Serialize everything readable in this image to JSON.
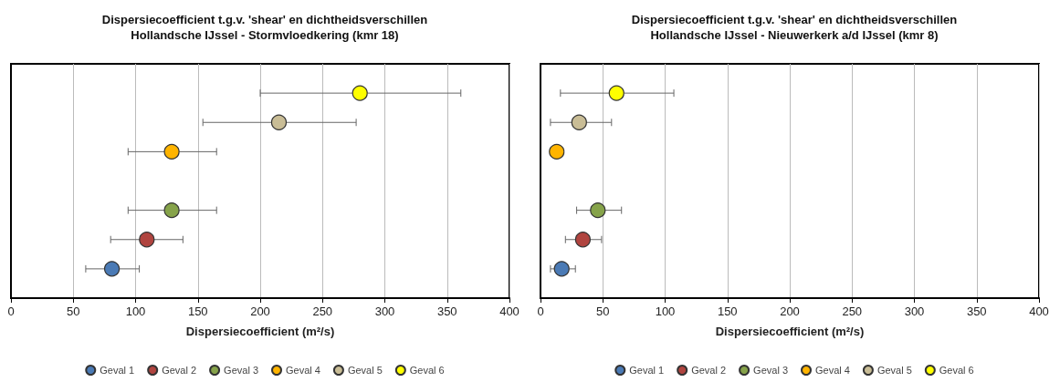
{
  "chart_data": [
    {
      "type": "scatter",
      "orientation": "horizontal",
      "title": "Dispersiecoefficient t.g.v. 'shear' en dichtheidsverschillen",
      "subtitle": "Hollandsche IJssel - Stormvloedkering (kmr 18)",
      "xlabel": "Dispersiecoefficient (m²/s)",
      "categories": [
        null,
        null,
        null,
        null,
        null,
        null,
        null
      ],
      "xlim": [
        0,
        400
      ],
      "xticks": [
        0,
        50,
        100,
        150,
        200,
        250,
        300,
        350,
        400
      ],
      "grid": "x",
      "legend": "bottom",
      "marker": "circle",
      "series": [
        {
          "name": "Geval 1",
          "color": "#4a7ab5",
          "values": [
            null,
            null,
            null,
            null,
            null,
            null,
            81
          ],
          "errors": [
            null,
            null,
            null,
            null,
            null,
            null,
            [
              60,
              103
            ]
          ]
        },
        {
          "name": "Geval 2",
          "color": "#b0443f",
          "values": [
            null,
            null,
            null,
            null,
            null,
            109,
            null
          ],
          "errors": [
            null,
            null,
            null,
            null,
            null,
            [
              80,
              138
            ],
            null
          ]
        },
        {
          "name": "Geval 3",
          "color": "#86a34a",
          "values": [
            null,
            null,
            null,
            null,
            129,
            null,
            null
          ],
          "errors": [
            null,
            null,
            null,
            null,
            [
              94,
              165
            ],
            null,
            null
          ]
        },
        {
          "name": "Geval 4",
          "color": "#ffb400",
          "values": [
            null,
            null,
            129,
            null,
            null,
            null,
            null
          ],
          "errors": [
            null,
            null,
            [
              94,
              165
            ],
            null,
            null,
            null,
            null
          ]
        },
        {
          "name": "Geval 5",
          "color": "#c9bd96",
          "values": [
            null,
            215,
            null,
            null,
            null,
            null,
            null
          ],
          "errors": [
            null,
            [
              154,
              277
            ],
            null,
            null,
            null,
            null,
            null
          ]
        },
        {
          "name": "Geval 6",
          "color": "#ffff00",
          "values": [
            280,
            null,
            null,
            null,
            null,
            null,
            null
          ],
          "errors": [
            [
              200,
              361
            ],
            null,
            null,
            null,
            null,
            null,
            null
          ]
        }
      ]
    },
    {
      "type": "scatter",
      "orientation": "horizontal",
      "title": "Dispersiecoefficient t.g.v. 'shear' en dichtheidsverschillen",
      "subtitle": "Hollandsche IJssel - Nieuwerkerk a/d IJssel (kmr 8)",
      "xlabel": "Dispersiecoefficient (m²/s)",
      "categories": [
        null,
        null,
        null,
        null,
        null,
        null,
        null
      ],
      "xlim": [
        0,
        400
      ],
      "xticks": [
        0,
        50,
        100,
        150,
        200,
        250,
        300,
        350,
        400
      ],
      "grid": "x",
      "legend": "bottom",
      "marker": "circle",
      "series": [
        {
          "name": "Geval 1",
          "color": "#4a7ab5",
          "values": [
            null,
            null,
            null,
            null,
            null,
            null,
            17
          ],
          "errors": [
            null,
            null,
            null,
            null,
            null,
            null,
            [
              8,
              28
            ]
          ]
        },
        {
          "name": "Geval 2",
          "color": "#b0443f",
          "values": [
            null,
            null,
            null,
            null,
            null,
            34,
            null
          ],
          "errors": [
            null,
            null,
            null,
            null,
            null,
            [
              20,
              49
            ],
            null
          ]
        },
        {
          "name": "Geval 3",
          "color": "#86a34a",
          "values": [
            null,
            null,
            null,
            null,
            46,
            null,
            null
          ],
          "errors": [
            null,
            null,
            null,
            null,
            [
              29,
              65
            ],
            null,
            null
          ]
        },
        {
          "name": "Geval 4",
          "color": "#ffb400",
          "values": [
            null,
            null,
            13,
            null,
            null,
            null,
            null
          ]
        },
        {
          "name": "Geval 5",
          "color": "#c9bd96",
          "values": [
            null,
            31,
            null,
            null,
            null,
            null,
            null
          ],
          "errors": [
            null,
            [
              8,
              57
            ],
            null,
            null,
            null,
            null,
            null
          ]
        },
        {
          "name": "Geval 6",
          "color": "#ffff00",
          "values": [
            61,
            null,
            null,
            null,
            null,
            null,
            null
          ],
          "errors": [
            [
              16,
              107
            ],
            null,
            null,
            null,
            null,
            null,
            null
          ]
        }
      ]
    }
  ]
}
